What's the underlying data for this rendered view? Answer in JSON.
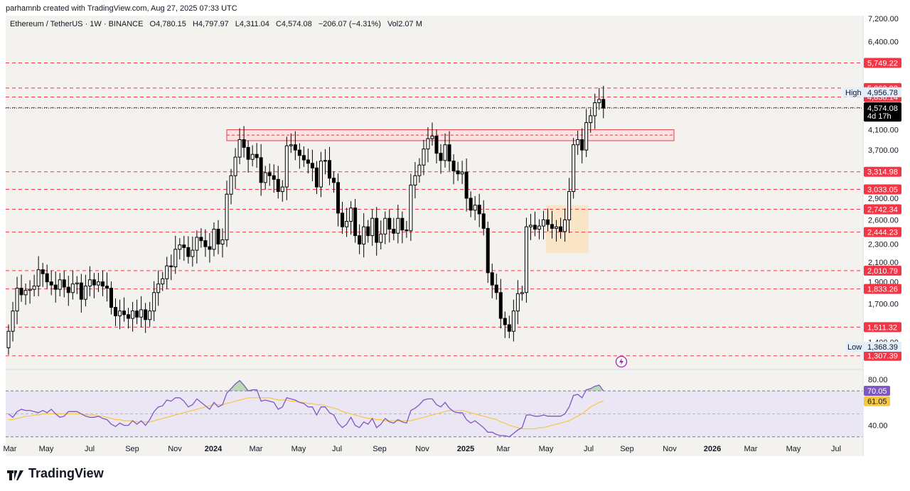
{
  "header": {
    "created": "parhamnb created with TradingView.com, Aug 27, 2025 07:33 UTC"
  },
  "legend": {
    "symbol": "Ethereum / TetherUS · 1W · BINANCE",
    "open": "O4,780.15",
    "high": "H4,797.97",
    "low": "L4,311.04",
    "close": "C4,574.08",
    "change": "−206.07 (−4.31%)",
    "vol": "Vol2.07 M"
  },
  "footer": {
    "brand": "TradingView"
  },
  "colors": {
    "background": "#f4f2ee",
    "resistance": "#f23645",
    "bear_candle": "#000000",
    "bull_candle": "#ffffff",
    "zone_fill": "#fce3c0",
    "rsi_line": "#7e57c2",
    "rsi_ma": "#f5c842",
    "rsi_band": "#ebe6f4"
  },
  "icons": {
    "flash": "lightning-icon",
    "logo": "tradingview-logo-icon"
  },
  "chart_data": [
    {
      "type": "candlestick",
      "title": "Ethereum / TetherUS · 1W · BINANCE",
      "y_scale": "log",
      "ylim": [
        1220,
        7300
      ],
      "x_tick_labels": [
        "Mar",
        "May",
        "Jul",
        "Sep",
        "Nov",
        "2024",
        "Mar",
        "May",
        "Jul",
        "Sep",
        "Nov",
        "2025",
        "Mar",
        "May",
        "Jul",
        "Sep",
        "Nov",
        "2026",
        "Mar",
        "May",
        "Jul"
      ],
      "y_tick_labels": [
        "7,200.00",
        "6,400.00",
        "4,100.00",
        "3,700.00",
        "2,900.00",
        "2,600.00",
        "2,300.00",
        "2,100.00",
        "1,900.00",
        "1,700.00",
        "1,510.00",
        "1,400.00"
      ],
      "price_levels": [
        "5,749.22",
        "5,063.82",
        "4,838.14",
        "4,585.46",
        "3,314.98",
        "3,033.05",
        "2,742.34",
        "2,444.23",
        "2,010.79",
        "1,833.26",
        "1,511.32",
        "1,307.39"
      ],
      "high_label": "High",
      "high_value": "4,956.78",
      "low_label": "Low",
      "low_value": "1,368.39",
      "last_price": "4,574.08",
      "countdown": "4d 17h",
      "resistance_zone": [
        3880,
        4100
      ],
      "demand_zone": [
        2200,
        2800
      ],
      "closes": [
        1480,
        1640,
        1840,
        1780,
        1820,
        1830,
        1860,
        2020,
        1980,
        1900,
        1870,
        1830,
        1920,
        1850,
        1800,
        1880,
        1890,
        1740,
        1860,
        1920,
        1870,
        1900,
        1860,
        1840,
        1670,
        1600,
        1640,
        1610,
        1580,
        1640,
        1590,
        1650,
        1570,
        1640,
        1800,
        1880,
        1930,
        2060,
        2050,
        2240,
        2290,
        2260,
        2160,
        2230,
        2380,
        2340,
        2270,
        2240,
        2480,
        2300,
        2350,
        2960,
        3250,
        3570,
        3900,
        3750,
        3530,
        3620,
        3560,
        3140,
        3300,
        3250,
        3190,
        3000,
        3070,
        3780,
        3800,
        3700,
        3600,
        3520,
        3460,
        3380,
        3070,
        3500,
        3510,
        3210,
        3140,
        2690,
        2510,
        2580,
        2760,
        2400,
        2300,
        2510,
        2400,
        2620,
        2320,
        2420,
        2620,
        2480,
        2430,
        2620,
        2470,
        2460,
        3100,
        3250,
        3430,
        3720,
        3920,
        3970,
        3640,
        3510,
        3800,
        3500,
        3330,
        3280,
        3310,
        2900,
        2730,
        2800,
        2680,
        2490,
        1990,
        1870,
        1800,
        1580,
        1530,
        1480,
        1640,
        1790,
        1800,
        2510,
        2530,
        2480,
        2520,
        2600,
        2540,
        2490,
        2510,
        2450,
        2600,
        3000,
        3800,
        3900,
        3700,
        4250,
        4400,
        4700,
        4780,
        4574
      ]
    },
    {
      "type": "line",
      "title": "RSI",
      "ylim": [
        28,
        88
      ],
      "y_tick_labels": [
        "80.00",
        "40.00"
      ],
      "band": [
        30,
        70
      ],
      "series": [
        {
          "values": [
            50,
            47,
            52,
            54,
            53,
            53,
            52,
            51,
            53,
            51,
            54,
            50,
            47,
            48,
            52,
            52,
            52,
            50,
            48,
            47,
            47,
            48,
            46,
            45,
            41,
            39,
            42,
            40,
            40,
            44,
            41,
            44,
            40,
            45,
            52,
            56,
            57,
            62,
            61,
            64,
            64,
            61,
            56,
            58,
            63,
            60,
            57,
            54,
            60,
            56,
            58,
            68,
            72,
            76,
            79,
            75,
            70,
            71,
            71,
            61,
            62,
            61,
            60,
            54,
            56,
            64,
            63,
            62,
            60,
            59,
            56,
            56,
            49,
            56,
            56,
            51,
            49,
            42,
            38,
            41,
            47,
            40,
            38,
            43,
            41,
            46,
            38,
            41,
            46,
            43,
            42,
            45,
            43,
            42,
            53,
            55,
            58,
            62,
            63,
            63,
            58,
            56,
            60,
            55,
            52,
            51,
            51,
            45,
            42,
            44,
            41,
            38,
            34,
            34,
            32,
            31,
            31,
            30,
            33,
            36,
            38,
            49,
            49,
            48,
            48,
            49,
            48,
            48,
            48,
            48,
            50,
            56,
            66,
            67,
            64,
            71,
            72,
            74,
            75,
            70
          ]
        },
        {
          "values": [
            45,
            45,
            46,
            47,
            48,
            48,
            49,
            49,
            50,
            50,
            50,
            50,
            50,
            50,
            50,
            50,
            50,
            50,
            49,
            49,
            49,
            48,
            48,
            47,
            46,
            45,
            45,
            44,
            44,
            44,
            43,
            43,
            43,
            43,
            44,
            45,
            46,
            47,
            48,
            49,
            50,
            51,
            52,
            53,
            54,
            55,
            56,
            57,
            58,
            58,
            58,
            59,
            60,
            61,
            62,
            63,
            64,
            64,
            64,
            64,
            64,
            64,
            63,
            62,
            62,
            62,
            61,
            61,
            60,
            60,
            59,
            59,
            58,
            58,
            57,
            56,
            55,
            54,
            52,
            51,
            50,
            49,
            48,
            47,
            46,
            46,
            45,
            45,
            44,
            44,
            44,
            44,
            44,
            44,
            44,
            45,
            46,
            47,
            48,
            49,
            50,
            51,
            52,
            53,
            53,
            53,
            53,
            52,
            51,
            50,
            49,
            48,
            47,
            46,
            45,
            43,
            42,
            40,
            39,
            38,
            37,
            37,
            37,
            37,
            38,
            38,
            39,
            40,
            41,
            42,
            43,
            44,
            46,
            48,
            50,
            53,
            56,
            58,
            60,
            61
          ]
        }
      ],
      "last_values": [
        "70.05",
        "61.05"
      ]
    }
  ]
}
